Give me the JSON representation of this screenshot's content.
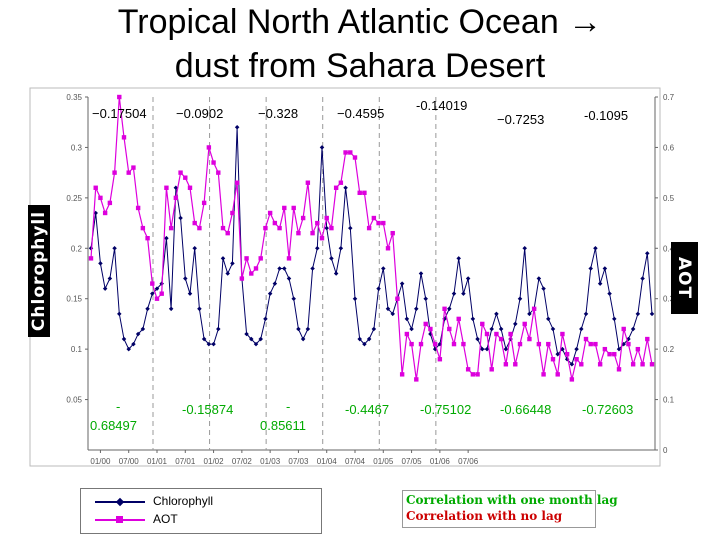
{
  "title_line1": "Tropical North Atlantic Ocean →",
  "title_line2": "dust from Sahara Desert",
  "left_axis_label": "Chlorophyll",
  "right_axis_label": "AOT",
  "legend": {
    "chlorophyll": "Chlorophyll",
    "aot": "AOT",
    "lag_line": "Correlation with one month lag",
    "nolag_line": "Correlation with no lag"
  },
  "colors": {
    "chlorophyll": "#000066",
    "aot": "#dd00dd",
    "lag_text": "#00aa00",
    "nolag_text": "#cc0000"
  },
  "correlations_top": [
    "−0.17504",
    "−0.0902",
    "−0.328",
    "−0.4595",
    "-0.14019",
    "−0.7253",
    "-0.1095"
  ],
  "correlations_bottom": [
    "-",
    "0.68497",
    "-0.15874",
    "-",
    "0.85611",
    "-0.4467",
    "-0.75102",
    "-0.66448",
    "-0.72603"
  ],
  "chart_data": {
    "type": "line",
    "x_ticks": [
      "01/00",
      "07/00",
      "01/01",
      "07/01",
      "01/02",
      "07/02",
      "01/03",
      "07/03",
      "01/04",
      "07/04",
      "01/05",
      "07/05",
      "01/06",
      "07/06"
    ],
    "y_left_ticks": [
      "0.05",
      "0.1",
      "0.15",
      "0.2",
      "0.25",
      "0.3",
      "0.35"
    ],
    "y_right_ticks": [
      "0",
      "0.1",
      "0.2",
      "0.3",
      "0.4",
      "0.5",
      "0.6",
      "0.7"
    ],
    "y_left_range": [
      0.0,
      0.35
    ],
    "y_right_range": [
      0.0,
      0.7
    ],
    "year_dividers": [
      "01/01",
      "01/02",
      "01/03",
      "01/04",
      "01/05",
      "01/06"
    ],
    "series": [
      {
        "name": "Chlorophyll",
        "axis": "left",
        "values": [
          0.2,
          0.235,
          0.185,
          0.16,
          0.17,
          0.2,
          0.135,
          0.11,
          0.1,
          0.105,
          0.115,
          0.12,
          0.14,
          0.155,
          0.16,
          0.165,
          0.21,
          0.14,
          0.26,
          0.23,
          0.17,
          0.155,
          0.2,
          0.14,
          0.11,
          0.105,
          0.105,
          0.12,
          0.19,
          0.175,
          0.185,
          0.32,
          0.17,
          0.115,
          0.11,
          0.105,
          0.11,
          0.13,
          0.155,
          0.165,
          0.18,
          0.18,
          0.17,
          0.15,
          0.12,
          0.11,
          0.12,
          0.18,
          0.2,
          0.3,
          0.22,
          0.19,
          0.175,
          0.2,
          0.26,
          0.22,
          0.15,
          0.11,
          0.105,
          0.11,
          0.12,
          0.16,
          0.18,
          0.14,
          0.135,
          0.15,
          0.165,
          0.13,
          0.12,
          0.14,
          0.175,
          0.15,
          0.115,
          0.1,
          0.105,
          0.13,
          0.14,
          0.155,
          0.19,
          0.155,
          0.17,
          0.13,
          0.11,
          0.1,
          0.1,
          0.12,
          0.135,
          0.12,
          0.1,
          0.11,
          0.125,
          0.15,
          0.2,
          0.135,
          0.14,
          0.17,
          0.16,
          0.13,
          0.12,
          0.095,
          0.1,
          0.09,
          0.085,
          0.1,
          0.12,
          0.135,
          0.18,
          0.2,
          0.165,
          0.18,
          0.155,
          0.13,
          0.1,
          0.105,
          0.11,
          0.12,
          0.135,
          0.17,
          0.195,
          0.135
        ]
      },
      {
        "name": "AOT",
        "axis": "right",
        "values": [
          0.38,
          0.52,
          0.5,
          0.47,
          0.49,
          0.55,
          0.7,
          0.62,
          0.55,
          0.56,
          0.48,
          0.44,
          0.42,
          0.33,
          0.3,
          0.31,
          0.52,
          0.44,
          0.5,
          0.55,
          0.54,
          0.52,
          0.45,
          0.44,
          0.49,
          0.6,
          0.57,
          0.55,
          0.44,
          0.43,
          0.47,
          0.53,
          0.34,
          0.38,
          0.35,
          0.36,
          0.38,
          0.44,
          0.47,
          0.45,
          0.44,
          0.48,
          0.38,
          0.48,
          0.43,
          0.46,
          0.53,
          0.43,
          0.45,
          0.42,
          0.46,
          0.44,
          0.52,
          0.53,
          0.59,
          0.59,
          0.58,
          0.51,
          0.51,
          0.44,
          0.46,
          0.45,
          0.45,
          0.4,
          0.43,
          0.3,
          0.15,
          0.23,
          0.21,
          0.14,
          0.21,
          0.25,
          0.24,
          0.21,
          0.18,
          0.28,
          0.24,
          0.21,
          0.26,
          0.21,
          0.16,
          0.15,
          0.15,
          0.25,
          0.23,
          0.16,
          0.23,
          0.22,
          0.17,
          0.23,
          0.17,
          0.21,
          0.25,
          0.22,
          0.28,
          0.21,
          0.15,
          0.21,
          0.18,
          0.15,
          0.23,
          0.19,
          0.14,
          0.18,
          0.17,
          0.22,
          0.21,
          0.21,
          0.17,
          0.2,
          0.19,
          0.19,
          0.16,
          0.24,
          0.21,
          0.17,
          0.2,
          0.17,
          0.22,
          0.17
        ]
      }
    ]
  }
}
